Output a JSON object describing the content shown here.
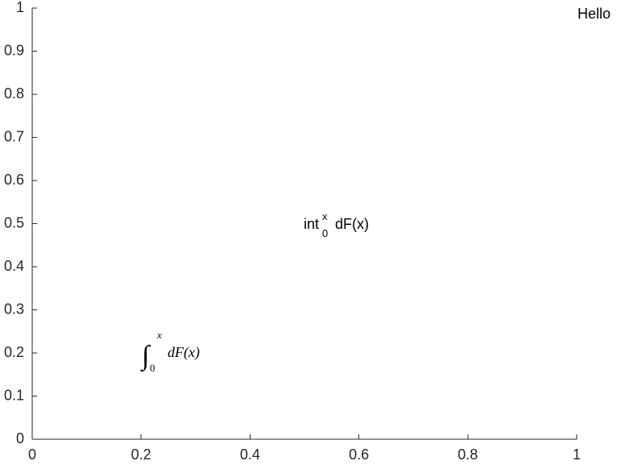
{
  "chart_data": {
    "type": "scatter",
    "title": "",
    "xlabel": "",
    "ylabel": "",
    "xlim": [
      0,
      1
    ],
    "ylim": [
      0,
      1
    ],
    "grid": false,
    "x_ticks": [
      "0",
      "0.2",
      "0.4",
      "0.6",
      "0.8",
      "1"
    ],
    "x_tick_values": [
      0,
      0.2,
      0.4,
      0.6,
      0.8,
      1
    ],
    "y_ticks": [
      "0",
      "0.1",
      "0.2",
      "0.3",
      "0.4",
      "0.5",
      "0.6",
      "0.7",
      "0.8",
      "0.9",
      "1"
    ],
    "y_tick_values": [
      0,
      0.1,
      0.2,
      0.3,
      0.4,
      0.5,
      0.6,
      0.7,
      0.8,
      0.9,
      1
    ],
    "annotations": [
      {
        "text": "Hello",
        "x": 1.0,
        "y": 1.0
      },
      {
        "text": "int_0^x dF(x)",
        "x": 0.5,
        "y": 0.5,
        "interpreter": "tex"
      },
      {
        "text": "$\\int_0^x\\! dF(x)$",
        "x": 0.2,
        "y": 0.2,
        "interpreter": "latex"
      }
    ]
  },
  "labels": {
    "hello": "Hello",
    "tex_base": "int",
    "tex_sup": "x",
    "tex_sub": "0",
    "tex_rest": "dF(x)",
    "latex_integral": "∫",
    "latex_sup": "x",
    "latex_sub": "0",
    "latex_rest": "dF(x)"
  },
  "colors": {
    "axis": "#262626",
    "text": "#000000",
    "background": "#ffffff"
  }
}
